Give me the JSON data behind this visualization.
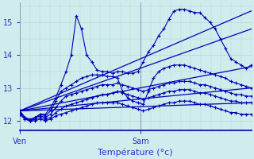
{
  "title": "",
  "xlabel": "Température (°c)",
  "ylabel": "",
  "bg_color": "#d0ecec",
  "line_color": "#0000bb",
  "grid_color": "#b0d8d8",
  "axis_color": "#0000aa",
  "ylim": [
    11.7,
    15.6
  ],
  "xlim": [
    0,
    46
  ],
  "ven_x": 0,
  "sam_x": 24,
  "tick_label_color": "#3333cc",
  "series": [
    [
      12.3,
      12.1,
      12.0,
      12.1,
      12.2,
      12.2,
      12.4,
      12.7,
      13.1,
      13.5,
      14.0,
      15.2,
      14.8,
      14.0,
      13.8,
      13.55,
      13.5,
      13.5,
      13.45,
      13.5,
      13.5,
      13.45,
      13.45,
      13.5,
      13.8,
      14.1,
      14.3,
      14.6,
      14.8,
      15.1,
      15.35,
      15.4,
      15.4,
      15.35,
      15.3,
      15.3,
      15.15,
      15.0,
      14.8,
      14.5,
      14.2,
      13.9,
      13.8,
      13.7,
      13.6,
      13.7
    ],
    [
      12.3,
      12.1,
      12.0,
      12.1,
      12.2,
      12.15,
      12.3,
      12.6,
      12.9,
      13.0,
      13.1,
      13.2,
      13.3,
      13.35,
      13.4,
      13.4,
      13.4,
      13.35,
      13.35,
      13.3,
      12.9,
      12.7,
      12.6,
      12.55,
      12.5,
      12.9,
      13.3,
      13.5,
      13.6,
      13.65,
      13.7,
      13.7,
      13.7,
      13.65,
      13.6,
      13.55,
      13.5,
      13.45,
      13.4,
      13.35,
      13.3,
      13.2,
      13.15,
      13.1,
      13.05,
      13.0
    ],
    [
      12.25,
      12.1,
      12.05,
      12.1,
      12.15,
      12.1,
      12.2,
      12.4,
      12.6,
      12.75,
      12.8,
      12.85,
      12.9,
      12.95,
      13.0,
      13.05,
      13.1,
      13.1,
      13.1,
      13.15,
      13.1,
      13.05,
      13.0,
      12.95,
      12.9,
      12.95,
      13.0,
      13.05,
      13.1,
      13.15,
      13.15,
      13.2,
      13.2,
      13.2,
      13.15,
      13.1,
      13.1,
      13.05,
      13.0,
      12.95,
      12.9,
      12.85,
      12.8,
      12.8,
      12.75,
      12.75
    ],
    [
      12.2,
      12.05,
      12.0,
      12.05,
      12.1,
      12.05,
      12.1,
      12.25,
      12.35,
      12.45,
      12.5,
      12.55,
      12.6,
      12.65,
      12.7,
      12.75,
      12.8,
      12.8,
      12.85,
      12.9,
      12.85,
      12.8,
      12.75,
      12.7,
      12.65,
      12.7,
      12.75,
      12.8,
      12.85,
      12.9,
      12.9,
      12.95,
      12.95,
      12.95,
      12.9,
      12.85,
      12.85,
      12.8,
      12.75,
      12.7,
      12.65,
      12.6,
      12.6,
      12.55,
      12.55,
      12.55
    ],
    [
      12.2,
      12.05,
      12.0,
      12.0,
      12.05,
      12.0,
      12.05,
      12.15,
      12.2,
      12.25,
      12.3,
      12.35,
      12.4,
      12.45,
      12.5,
      12.55,
      12.55,
      12.55,
      12.55,
      12.55,
      12.5,
      12.45,
      12.4,
      12.35,
      12.3,
      12.35,
      12.4,
      12.45,
      12.5,
      12.55,
      12.55,
      12.6,
      12.6,
      12.6,
      12.55,
      12.5,
      12.5,
      12.45,
      12.4,
      12.35,
      12.3,
      12.25,
      12.25,
      12.2,
      12.2,
      12.2
    ]
  ],
  "straight_lines": [
    [
      [
        0,
        12.3
      ],
      [
        46,
        15.35
      ]
    ],
    [
      [
        0,
        12.3
      ],
      [
        46,
        14.8
      ]
    ],
    [
      [
        0,
        12.3
      ],
      [
        46,
        13.65
      ]
    ],
    [
      [
        0,
        12.3
      ],
      [
        46,
        13.0
      ]
    ],
    [
      [
        0,
        12.3
      ],
      [
        46,
        12.55
      ]
    ]
  ]
}
